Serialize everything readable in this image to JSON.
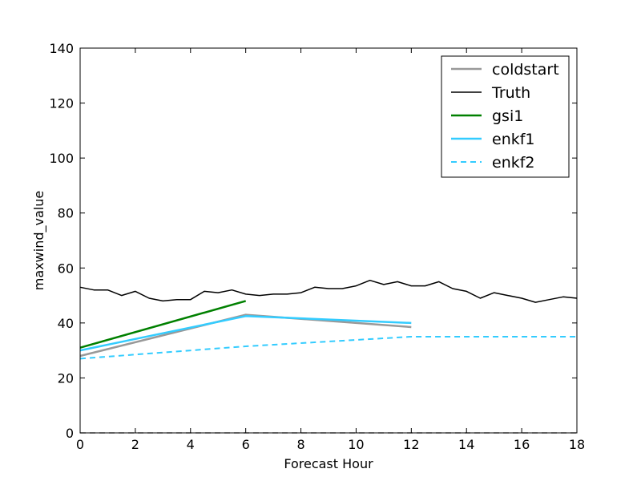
{
  "chart_data": {
    "type": "line",
    "xlabel": "Forecast Hour",
    "ylabel": "maxwind_value",
    "xlim": [
      0,
      18
    ],
    "ylim": [
      0,
      140
    ],
    "x_ticks": [
      0,
      2,
      4,
      6,
      8,
      10,
      12,
      14,
      16,
      18
    ],
    "y_ticks": [
      0,
      20,
      40,
      60,
      80,
      100,
      120,
      140
    ],
    "grid": false,
    "legend_position": "top-right",
    "series": [
      {
        "name": "coldstart",
        "color": "#999999",
        "style": "solid",
        "width": 2.5,
        "x": [
          0,
          6,
          12
        ],
        "y": [
          28,
          43,
          38.5
        ]
      },
      {
        "name": "Truth",
        "color": "#000000",
        "style": "solid",
        "width": 1.5,
        "x": [
          0,
          0.5,
          1,
          1.5,
          2,
          2.5,
          3,
          3.5,
          4,
          4.5,
          5,
          5.5,
          6,
          6.5,
          7,
          7.5,
          8,
          8.5,
          9,
          9.5,
          10,
          10.5,
          11,
          11.5,
          12,
          12.5,
          13,
          13.5,
          14,
          14.5,
          15,
          15.5,
          16,
          16.5,
          17,
          17.5,
          18
        ],
        "y": [
          53,
          52,
          52,
          50,
          51.5,
          49,
          48,
          48.5,
          48.5,
          51.5,
          51,
          52,
          50.5,
          50,
          50.5,
          50.5,
          51,
          53,
          52.5,
          52.5,
          53.5,
          55.5,
          54,
          55,
          53.5,
          53.5,
          55,
          52.5,
          51.5,
          49,
          51,
          50,
          49,
          47.5,
          48.5,
          49.5,
          49
        ]
      },
      {
        "name": "gsi1",
        "color": "#008000",
        "style": "solid",
        "width": 2.5,
        "x": [
          0,
          6
        ],
        "y": [
          31,
          48
        ]
      },
      {
        "name": "enkf1",
        "color": "#33ccff",
        "style": "solid",
        "width": 2.5,
        "x": [
          0,
          6,
          12
        ],
        "y": [
          30,
          42.5,
          40
        ]
      },
      {
        "name": "enkf2",
        "color": "#33ccff",
        "style": "dashed",
        "width": 2,
        "x": [
          0,
          6,
          12,
          18
        ],
        "y": [
          27,
          31.5,
          35,
          35
        ]
      },
      {
        "name": "",
        "color": "#000000",
        "style": "dashed",
        "width": 1.2,
        "x": [
          0,
          18
        ],
        "y": [
          0,
          0
        ]
      }
    ]
  }
}
